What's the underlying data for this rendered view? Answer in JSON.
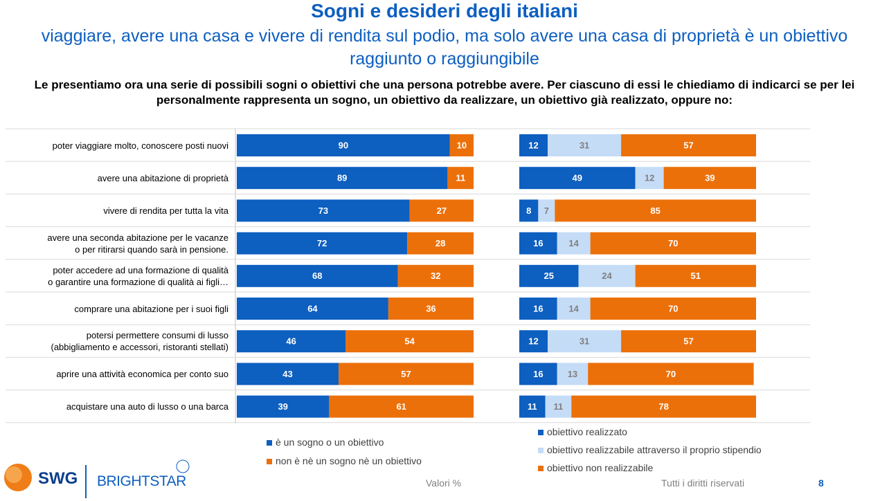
{
  "header": {
    "title": "Sogni e desideri degli italiani",
    "subtitle": "viaggiare, avere una casa e vivere di rendita sul podio, ma solo avere una casa di proprietà è un obiettivo raggiunto o raggiungibile",
    "question": "Le presentiamo ora una serie di possibili sogni o obiettivi che una persona potrebbe avere. Per ciascuno di essi le chiediamo di indicarci se per lei personalmente rappresenta un sogno, un obiettivo da realizzare, un obiettivo già realizzato, oppure no:"
  },
  "chart_data": [
    {
      "type": "bar",
      "orientation": "horizontal",
      "stacked": true,
      "categories": [
        "poter viaggiare molto, conoscere posti nuovi",
        "avere una abitazione di proprietà",
        "vivere di rendita per tutta la vita",
        "avere una seconda abitazione per le vacanze\no per ritirarsi quando sarà in pensione.",
        "poter accedere ad una formazione di qualità\no garantire una formazione di qualità ai figli…",
        "comprare una abitazione per i suoi figli",
        "potersi permettere consumi di lusso\n(abbigliamento e accessori, ristoranti stellati)",
        "aprire una attività economica per conto suo",
        "acquistare una auto di lusso o una barca"
      ],
      "series": [
        {
          "name": "è un sogno o un obiettivo",
          "color": "#0d5fc0",
          "label_color": "#ffffff",
          "values": [
            90,
            89,
            73,
            72,
            68,
            64,
            46,
            43,
            39
          ]
        },
        {
          "name": "non è nè un sogno nè un obiettivo",
          "color": "#ec700a",
          "label_color": "#ffffff",
          "values": [
            10,
            11,
            27,
            28,
            32,
            36,
            54,
            57,
            61
          ]
        }
      ]
    },
    {
      "type": "bar",
      "orientation": "horizontal",
      "stacked": true,
      "series": [
        {
          "name": "obiettivo realizzato",
          "color": "#0d5fc0",
          "label_color": "#ffffff",
          "values": [
            12,
            49,
            8,
            16,
            25,
            16,
            12,
            16,
            11
          ]
        },
        {
          "name": "obiettivo realizzabile attraverso il proprio stipendio",
          "color": "#c5dcf7",
          "label_color": "#7f7f7f",
          "values": [
            31,
            12,
            7,
            14,
            24,
            14,
            31,
            13,
            11
          ]
        },
        {
          "name": "obiettivo non realizzabile",
          "color": "#ec700a",
          "label_color": "#ffffff",
          "values": [
            57,
            39,
            85,
            70,
            51,
            70,
            57,
            70,
            78
          ]
        }
      ]
    }
  ],
  "footer": {
    "left_logo": "SWG",
    "right_logo": "BRIGHTSTAR",
    "note": "Valori %",
    "rights": "Tutti i diritti riservati",
    "page": 8
  }
}
